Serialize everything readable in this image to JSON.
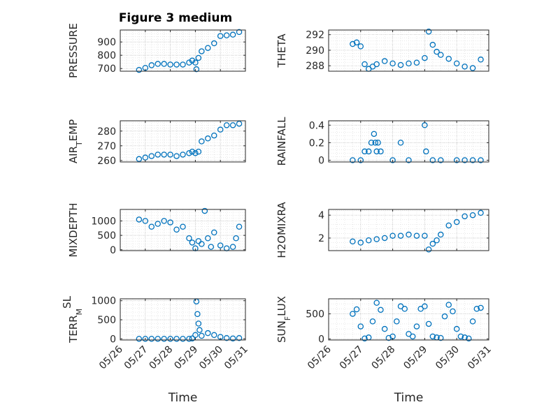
{
  "figure": {
    "title": "Figure 3 medium"
  },
  "chart_data": [
    {
      "type": "scatter",
      "panel": "pressure",
      "ylabel": "PRESSURE",
      "ylabel_html": "PRESSURE",
      "xlim": [
        "05/26",
        "05/31"
      ],
      "ylim": [
        680,
        990
      ],
      "yticks": [
        700,
        800,
        900
      ],
      "series": [
        {
          "x": [
            "05/26 18:00",
            "05/27 00:00",
            "05/27 06:00",
            "05/27 12:00",
            "05/27 18:00",
            "05/28 00:00",
            "05/28 06:00",
            "05/28 12:00",
            "05/28 18:00",
            "05/28 21:00",
            "05/29 00:00",
            "05/29 01:00",
            "05/29 03:00",
            "05/29 06:00",
            "05/29 12:00",
            "05/29 18:00",
            "05/30 00:00",
            "05/30 06:00",
            "05/30 12:00",
            "05/30 18:00"
          ],
          "y": [
            690,
            705,
            725,
            735,
            735,
            730,
            730,
            730,
            745,
            760,
            745,
            695,
            780,
            830,
            855,
            890,
            945,
            950,
            955,
            975
          ]
        }
      ]
    },
    {
      "type": "scatter",
      "panel": "theta",
      "ylabel": "THETA",
      "xlim": [
        "05/26",
        "05/31"
      ],
      "ylim": [
        287.3,
        292.6
      ],
      "yticks": [
        288,
        290,
        292
      ],
      "series": [
        {
          "x": [
            "05/26 18:00",
            "05/26 21:00",
            "05/27 00:00",
            "05/27 03:00",
            "05/27 06:00",
            "05/27 09:00",
            "05/27 12:00",
            "05/27 18:00",
            "05/28 00:00",
            "05/28 06:00",
            "05/28 12:00",
            "05/28 18:00",
            "05/29 00:00",
            "05/29 03:00",
            "05/29 06:00",
            "05/29 09:00",
            "05/29 12:00",
            "05/29 18:00",
            "05/30 00:00",
            "05/30 06:00",
            "05/30 12:00",
            "05/30 18:00"
          ],
          "y": [
            290.8,
            291.0,
            290.5,
            288.2,
            287.6,
            287.9,
            288.2,
            288.6,
            288.3,
            288.1,
            288.3,
            288.4,
            289.0,
            292.4,
            290.7,
            289.8,
            289.4,
            288.9,
            288.3,
            287.9,
            287.7,
            288.8
          ]
        }
      ]
    },
    {
      "type": "scatter",
      "panel": "air_temp",
      "ylabel": "AIR_TEMP",
      "ylabel_html": "AIR<tspan baseline-shift='sub' font-size='11'>T</tspan>EMP",
      "xlim": [
        "05/26",
        "05/31"
      ],
      "ylim": [
        259,
        287
      ],
      "yticks": [
        260,
        270,
        280
      ],
      "series": [
        {
          "x": [
            "05/26 18:00",
            "05/27 00:00",
            "05/27 06:00",
            "05/27 12:00",
            "05/27 18:00",
            "05/28 00:00",
            "05/28 06:00",
            "05/28 12:00",
            "05/28 18:00",
            "05/28 21:00",
            "05/29 00:00",
            "05/29 03:00",
            "05/29 06:00",
            "05/29 12:00",
            "05/29 18:00",
            "05/30 00:00",
            "05/30 06:00",
            "05/30 12:00",
            "05/30 18:00"
          ],
          "y": [
            261,
            262,
            263,
            264,
            264,
            264,
            263,
            264,
            265,
            266,
            265,
            266,
            273,
            275,
            277,
            281,
            284,
            284,
            285
          ]
        }
      ]
    },
    {
      "type": "scatter",
      "panel": "rainfall",
      "ylabel": "RAINFALL",
      "xlim": [
        "05/26",
        "05/31"
      ],
      "ylim": [
        -0.02,
        0.45
      ],
      "yticks": [
        0,
        0.2,
        0.4
      ],
      "series": [
        {
          "x": [
            "05/26 18:00",
            "05/27 00:00",
            "05/27 03:00",
            "05/27 06:00",
            "05/27 08:00",
            "05/27 10:00",
            "05/27 11:00",
            "05/27 12:00",
            "05/27 13:00",
            "05/27 15:00",
            "05/28 00:00",
            "05/28 06:00",
            "05/28 12:00",
            "05/29 00:00",
            "05/29 01:00",
            "05/29 06:00",
            "05/29 12:00",
            "05/30 00:00",
            "05/30 06:00",
            "05/30 12:00",
            "05/30 18:00"
          ],
          "y": [
            0,
            0,
            0.1,
            0.1,
            0.2,
            0.3,
            0.2,
            0.1,
            0.2,
            0.1,
            0,
            0.2,
            0,
            0.4,
            0.1,
            0,
            0,
            0,
            0,
            0,
            0
          ]
        }
      ]
    },
    {
      "type": "scatter",
      "panel": "mixdepth",
      "ylabel": "MIXDEPTH",
      "xlim": [
        "05/26",
        "05/31"
      ],
      "ylim": [
        -30,
        1400
      ],
      "yticks": [
        0,
        500,
        1000
      ],
      "series": [
        {
          "x": [
            "05/26 18:00",
            "05/27 00:00",
            "05/27 06:00",
            "05/27 12:00",
            "05/27 18:00",
            "05/28 00:00",
            "05/28 06:00",
            "05/28 12:00",
            "05/28 18:00",
            "05/28 21:00",
            "05/29 00:00",
            "05/29 03:00",
            "05/29 06:00",
            "05/29 09:00",
            "05/29 12:00",
            "05/29 15:00",
            "05/29 18:00",
            "05/30 00:00",
            "05/30 06:00",
            "05/30 12:00",
            "05/30 15:00",
            "05/30 18:00"
          ],
          "y": [
            1050,
            1000,
            800,
            900,
            1000,
            950,
            700,
            800,
            400,
            250,
            50,
            300,
            200,
            1350,
            400,
            100,
            600,
            150,
            50,
            100,
            400,
            800
          ]
        }
      ]
    },
    {
      "type": "scatter",
      "panel": "h2omixra",
      "ylabel": "H2OMIXRA",
      "xlim": [
        "05/26",
        "05/31"
      ],
      "ylim": [
        0.9,
        4.5
      ],
      "yticks": [
        2,
        4
      ],
      "series": [
        {
          "x": [
            "05/26 18:00",
            "05/27 00:00",
            "05/27 06:00",
            "05/27 12:00",
            "05/27 18:00",
            "05/28 00:00",
            "05/28 06:00",
            "05/28 12:00",
            "05/28 18:00",
            "05/29 00:00",
            "05/29 03:00",
            "05/29 06:00",
            "05/29 09:00",
            "05/29 12:00",
            "05/29 18:00",
            "05/30 00:00",
            "05/30 06:00",
            "05/30 12:00",
            "05/30 18:00"
          ],
          "y": [
            1.7,
            1.6,
            1.8,
            1.9,
            2.0,
            2.2,
            2.2,
            2.3,
            2.2,
            2.2,
            1.0,
            1.5,
            1.8,
            2.3,
            3.1,
            3.4,
            3.9,
            4.0,
            4.2
          ]
        }
      ]
    },
    {
      "type": "scatter",
      "panel": "terr_msl",
      "ylabel": "TERR_MSL",
      "ylabel_html": "TERR<tspan baseline-shift='sub' font-size='11'>M</tspan><tspan baseline-shift='super'>SL</tspan>",
      "xlabel": "Time",
      "xticklabels": [
        "05/26",
        "05/27",
        "05/28",
        "05/29",
        "05/30",
        "05/31"
      ],
      "xlim": [
        "05/26",
        "05/31"
      ],
      "ylim": [
        -30,
        1050
      ],
      "yticks": [
        0,
        500,
        1000
      ],
      "series": [
        {
          "x": [
            "05/26 18:00",
            "05/27 00:00",
            "05/27 06:00",
            "05/27 12:00",
            "05/27 18:00",
            "05/28 00:00",
            "05/28 06:00",
            "05/28 12:00",
            "05/28 18:00",
            "05/28 21:00",
            "05/29 00:00",
            "05/29 01:00",
            "05/29 02:00",
            "05/29 03:00",
            "05/29 04:00",
            "05/29 06:00",
            "05/29 12:00",
            "05/29 18:00",
            "05/30 00:00",
            "05/30 06:00",
            "05/30 12:00",
            "05/30 18:00"
          ],
          "y": [
            0,
            0,
            0,
            0,
            0,
            0,
            0,
            0,
            0,
            10,
            100,
            980,
            650,
            400,
            230,
            80,
            150,
            100,
            50,
            20,
            10,
            20
          ]
        }
      ]
    },
    {
      "type": "scatter",
      "panel": "sun_flux",
      "ylabel": "SUN_FLUX",
      "ylabel_html": "SUN<tspan baseline-shift='sub' font-size='11'>F</tspan>LUX",
      "xlabel": "Time",
      "xticklabels": [
        "05/26",
        "05/27",
        "05/28",
        "05/29",
        "05/30",
        "05/31"
      ],
      "xlim": [
        "05/26",
        "05/31"
      ],
      "ylim": [
        -20,
        800
      ],
      "yticks": [
        0,
        500
      ],
      "series": [
        {
          "x": [
            "05/26 18:00",
            "05/26 21:00",
            "05/27 00:00",
            "05/27 03:00",
            "05/27 06:00",
            "05/27 09:00",
            "05/27 12:00",
            "05/27 15:00",
            "05/27 18:00",
            "05/27 21:00",
            "05/28 00:00",
            "05/28 03:00",
            "05/28 06:00",
            "05/28 09:00",
            "05/28 12:00",
            "05/28 15:00",
            "05/28 18:00",
            "05/28 21:00",
            "05/29 00:00",
            "05/29 03:00",
            "05/29 06:00",
            "05/29 09:00",
            "05/29 12:00",
            "05/29 15:00",
            "05/29 18:00",
            "05/29 21:00",
            "05/30 00:00",
            "05/30 03:00",
            "05/30 06:00",
            "05/30 09:00",
            "05/30 12:00",
            "05/30 15:00",
            "05/30 18:00"
          ],
          "y": [
            500,
            590,
            250,
            10,
            30,
            350,
            720,
            580,
            200,
            20,
            50,
            350,
            650,
            600,
            100,
            50,
            250,
            600,
            650,
            300,
            50,
            30,
            20,
            450,
            680,
            550,
            200,
            50,
            30,
            10,
            350,
            600,
            620
          ]
        }
      ]
    }
  ]
}
